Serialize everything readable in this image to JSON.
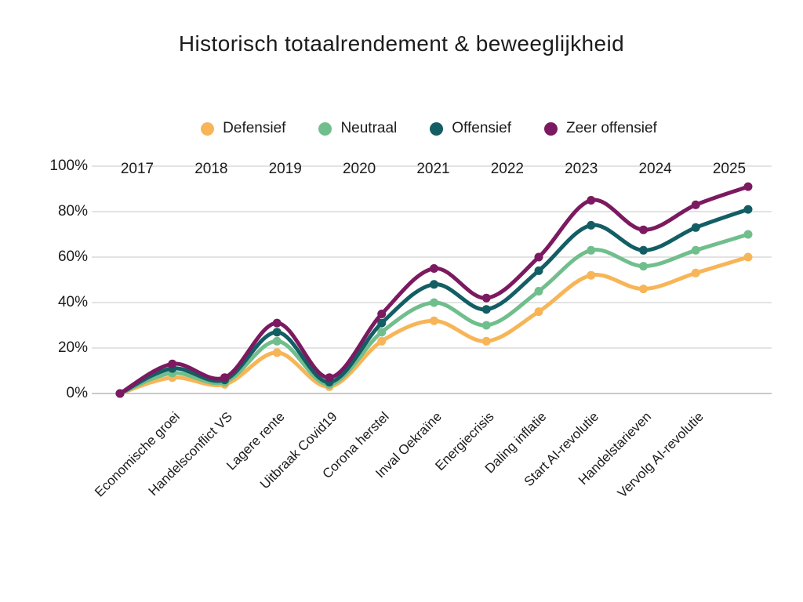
{
  "title": "Historisch totaalrendement & beweeglijkheid",
  "colors": {
    "grid": "#d2d2d2",
    "baseline": "#ababab",
    "text": "#1c1c1c"
  },
  "chart_data": {
    "type": "line",
    "title": "Historisch totaalrendement & beweeglijkheid",
    "xlabel": "",
    "ylabel": "",
    "ylim": [
      0,
      100
    ],
    "grid": "horizontal-only",
    "legend_position": "top-center",
    "y_tick_values": [
      0,
      20,
      40,
      60,
      80,
      100
    ],
    "y_tick_labels": [
      "0%",
      "20%",
      "40%",
      "60%",
      "80%",
      "100%"
    ],
    "year_labels": [
      "2017",
      "2018",
      "2019",
      "2020",
      "2021",
      "2022",
      "2023",
      "2024",
      "2025"
    ],
    "x_event_labels": [
      "Economische groei",
      "Handelsconflict VS",
      "Lagere rente",
      "Uitbraak Covid19",
      "Corona herstel",
      "Inval Oekraïne",
      "Energiecrisis",
      "Daling inflatie",
      "Start AI-revolutie",
      "Handelstarieven",
      "Vervolg AI-revolutie"
    ],
    "event_label_point_indices": [
      1,
      2,
      3,
      4,
      5,
      6,
      7,
      8,
      9,
      10,
      11
    ],
    "series": [
      {
        "name": "Defensief",
        "color": "#F7B557",
        "values": [
          0,
          7,
          4,
          18,
          3,
          23,
          32,
          23,
          36,
          52,
          46,
          53,
          60
        ]
      },
      {
        "name": "Neutraal",
        "color": "#71BE8D",
        "values": [
          0,
          9,
          5,
          23,
          4,
          27,
          40,
          30,
          45,
          63,
          56,
          63,
          70
        ]
      },
      {
        "name": "Offensief",
        "color": "#135E64",
        "values": [
          0,
          11,
          6,
          27,
          5,
          31,
          48,
          37,
          54,
          74,
          63,
          73,
          81
        ]
      },
      {
        "name": "Zeer offensief",
        "color": "#7B1A60",
        "values": [
          0,
          13,
          7,
          31,
          7,
          35,
          55,
          42,
          60,
          85,
          72,
          83,
          91
        ]
      }
    ]
  }
}
